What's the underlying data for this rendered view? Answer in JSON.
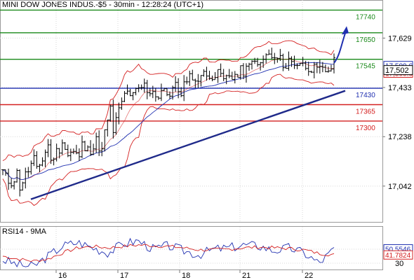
{
  "chart_data": [
    {
      "type": "candlestick",
      "title": "MINI DOW JONES INDUS.-$5 - 30min - 12:28:24 (UTC+1)",
      "ylim": [
        16900,
        17780
      ],
      "y_ticks": [
        "17,629",
        "17,433",
        "17,238",
        "17,042"
      ],
      "y_tick_values": [
        17629,
        17433,
        17238,
        17042
      ],
      "x_ticks": [
        "16",
        "17",
        "18",
        "21",
        "22"
      ],
      "price_path": [
        [
          17100,
          17000
        ],
        [
          17030,
          17110
        ],
        [
          17080,
          17150
        ],
        [
          17135,
          17230
        ],
        [
          17160,
          17210
        ],
        [
          17210,
          17130
        ],
        [
          17140,
          17260
        ],
        [
          17260,
          17390
        ],
        [
          17375,
          17440
        ],
        [
          17420,
          17440
        ],
        [
          17425,
          17385
        ],
        [
          17380,
          17450
        ],
        [
          17445,
          17515
        ],
        [
          17495,
          17470
        ],
        [
          17460,
          17500
        ],
        [
          17500,
          17470
        ],
        [
          17490,
          17560
        ],
        [
          17540,
          17575
        ],
        [
          17550,
          17510
        ],
        [
          17520,
          17540
        ],
        [
          17505,
          17490
        ],
        [
          17475,
          17530
        ]
      ],
      "levels": [
        {
          "value": 17740,
          "label": "17740",
          "color": "#1a8a1a"
        },
        {
          "value": 17650,
          "label": "17650",
          "color": "#1a8a1a"
        },
        {
          "value": 17545,
          "label": "17545",
          "color": "#1a8a1a"
        },
        {
          "value": 17430,
          "label": "17430",
          "color": "#1f2fb0"
        },
        {
          "value": 17365,
          "label": "17365",
          "color": "#d42020"
        },
        {
          "value": 17300,
          "label": "17300",
          "color": "#d42020"
        }
      ],
      "trendline": {
        "from": 16990,
        "to": 17420,
        "color": "#1f2a8a"
      },
      "arrow": {
        "from_value": 17530,
        "to_value": 17665,
        "color": "#1f2fb0"
      },
      "current_price": {
        "label": "17,502",
        "value": 17502
      },
      "price_tags": [
        {
          "label": "17,509.6",
          "value": 17520,
          "color": "#1f2fb0"
        },
        {
          "label": "17,500.0",
          "value": 17490,
          "color": "#d42020"
        }
      ]
    },
    {
      "type": "line",
      "title": "RSI14 - 9MA",
      "ylim": [
        20,
        80
      ],
      "y_ticks": [
        "50",
        "30"
      ],
      "y_tick_values": [
        50,
        30
      ],
      "series": [
        {
          "name": "RSI14",
          "color": "#1f2fb0",
          "values": [
            35,
            28,
            25,
            40,
            55,
            60,
            52,
            45,
            58,
            62,
            50,
            55,
            48,
            42,
            50,
            52,
            56,
            55,
            48,
            52,
            45,
            30,
            50
          ]
        },
        {
          "name": "9MA",
          "color": "#d42020",
          "values": [
            40,
            36,
            33,
            36,
            45,
            52,
            54,
            52,
            54,
            56,
            55,
            54,
            52,
            49,
            49,
            50,
            52,
            53,
            52,
            51,
            49,
            44,
            42
          ]
        }
      ],
      "value_tags": [
        {
          "label": "50.5546",
          "value": 50.5546,
          "color": "#1f2fb0"
        },
        {
          "label": "41.7824",
          "value": 41.7824,
          "color": "#d42020"
        }
      ]
    }
  ]
}
